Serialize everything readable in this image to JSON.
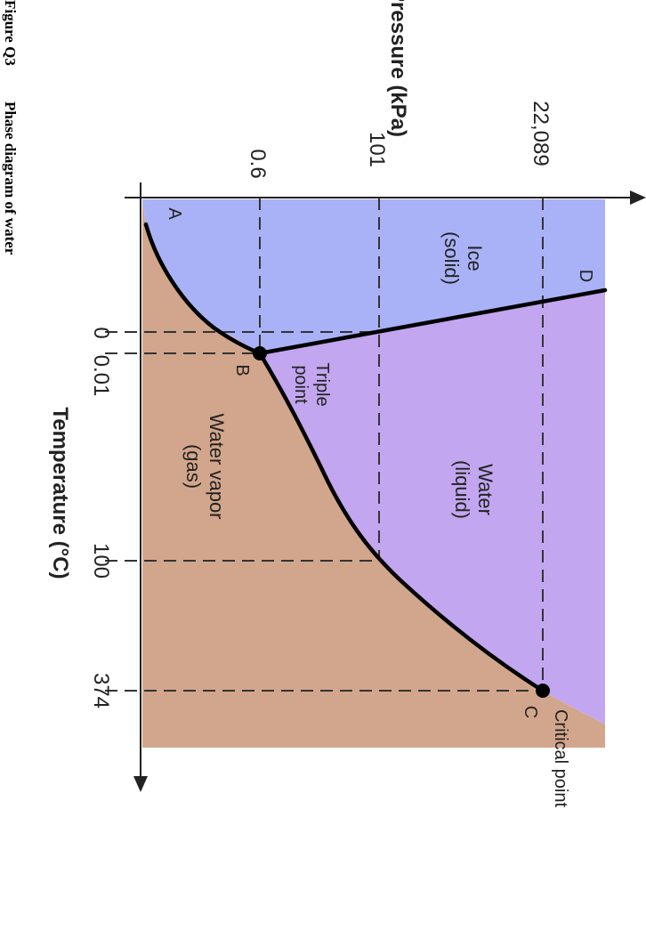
{
  "caption": {
    "label": "Figure Q3",
    "text": "Phase diagram of water"
  },
  "axes": {
    "pressure_label": "Pressure (kPa)",
    "temperature_label": "Temperature (°C)",
    "pressure_ticks": [
      "0.6",
      "101",
      "22,089"
    ],
    "temperature_ticks": [
      "0",
      "0.01",
      "100",
      "374"
    ]
  },
  "regions": {
    "ice": [
      "Ice",
      "(solid)"
    ],
    "water": [
      "Water",
      "(liquid)"
    ],
    "vapor": [
      "Water vapor",
      "(gas)"
    ]
  },
  "points": {
    "a": "A",
    "b": "B",
    "c": "C",
    "d": "D",
    "triple": [
      "Triple",
      "point"
    ],
    "critical": "Critical point"
  },
  "colors": {
    "ice": "#a9b2f7",
    "water": "#c2a6ef",
    "vapor": "#d2a68c"
  }
}
